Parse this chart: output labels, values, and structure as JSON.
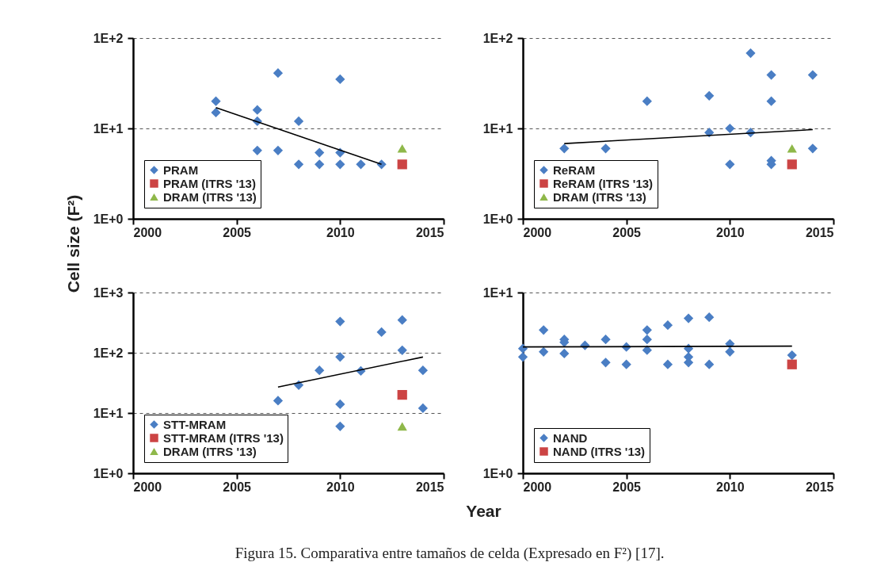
{
  "chart_data": [
    {
      "type": "scatter",
      "ylabel": "Cell size (F²)",
      "log": true,
      "grid": "y",
      "legend": "bottom left",
      "xlim": [
        2000,
        2015
      ],
      "xticks": [
        2000,
        2005,
        2010,
        2015
      ],
      "ylim": [
        1,
        100
      ],
      "yticks": [
        {
          "value": 1,
          "label": "1E+0"
        },
        {
          "value": 10,
          "label": "1E+1"
        },
        {
          "value": 100,
          "label": "1E+2"
        }
      ],
      "series": [
        {
          "name": "PRAM",
          "color": "#4a7ec4",
          "marker": "diamond",
          "x": [
            2004,
            2004,
            2006,
            2006,
            2006,
            2007,
            2007,
            2008,
            2008,
            2009,
            2009,
            2010,
            2010,
            2010,
            2011,
            2012
          ],
          "values": [
            20,
            15,
            16,
            12,
            5.7,
            41,
            5.7,
            12,
            4,
            5.4,
            4,
            35,
            5.4,
            4,
            4,
            4
          ]
        },
        {
          "name": "PRAM (ITRS '13)",
          "color": "#cc4444",
          "marker": "square",
          "x": [
            2013
          ],
          "values": [
            4
          ]
        },
        {
          "name": "DRAM (ITRS '13)",
          "color": "#8fb84a",
          "marker": "triangle",
          "x": [
            2013
          ],
          "values": [
            6
          ]
        },
        {
          "type": "line",
          "color": "#000000",
          "x": [
            2004,
            2012
          ],
          "values": [
            17,
            4
          ]
        }
      ]
    },
    {
      "type": "scatter",
      "log": true,
      "grid": "y",
      "legend": "bottom left",
      "xlim": [
        2000,
        2015
      ],
      "xticks": [
        2000,
        2005,
        2010,
        2015
      ],
      "ylim": [
        1,
        100
      ],
      "yticks": [
        {
          "value": 1,
          "label": "1E+0"
        },
        {
          "value": 10,
          "label": "1E+1"
        },
        {
          "value": 100,
          "label": "1E+2"
        }
      ],
      "series": [
        {
          "name": "ReRAM",
          "color": "#4a7ec4",
          "marker": "diamond",
          "x": [
            2002,
            2004,
            2006,
            2009,
            2009,
            2010,
            2010,
            2011,
            2011,
            2012,
            2012,
            2012,
            2012,
            2014,
            2014
          ],
          "values": [
            6,
            6,
            20,
            23,
            9,
            10,
            4,
            68,
            9,
            39,
            20,
            4.4,
            4,
            39,
            6
          ]
        },
        {
          "name": "ReRAM (ITRS '13)",
          "color": "#cc4444",
          "marker": "square",
          "x": [
            2013
          ],
          "values": [
            4
          ]
        },
        {
          "name": "DRAM (ITRS '13)",
          "color": "#8fb84a",
          "marker": "triangle",
          "x": [
            2013
          ],
          "values": [
            6
          ]
        },
        {
          "type": "line",
          "color": "#000000",
          "x": [
            2002,
            2014
          ],
          "values": [
            6.8,
            9.7
          ]
        }
      ]
    },
    {
      "type": "scatter",
      "xlabel": "Year",
      "log": true,
      "grid": "y",
      "legend": "bottom left",
      "xlim": [
        2000,
        2015
      ],
      "xticks": [
        2000,
        2005,
        2010,
        2015
      ],
      "ylim": [
        1,
        1000
      ],
      "yticks": [
        {
          "value": 1,
          "label": "1E+0"
        },
        {
          "value": 10,
          "label": "1E+1"
        },
        {
          "value": 100,
          "label": "1E+2"
        },
        {
          "value": 1000,
          "label": "1E+3"
        }
      ],
      "annotations": [
        "Figura 15. Comparativa entre tamaños de celda (Expresado en F²) [17]."
      ],
      "series": [
        {
          "name": "STT-MRAM",
          "color": "#4a7ec4",
          "marker": "diamond",
          "x": [
            2007,
            2008,
            2009,
            2010,
            2010,
            2010,
            2010,
            2011,
            2012,
            2013,
            2013,
            2014,
            2014
          ],
          "values": [
            16,
            29,
            51,
            330,
            85,
            14,
            6,
            50,
            220,
            350,
            110,
            51,
            12
          ]
        },
        {
          "name": "STT-MRAM (ITRS '13)",
          "color": "#cc4444",
          "marker": "square",
          "x": [
            2013
          ],
          "values": [
            20
          ]
        },
        {
          "name": "DRAM (ITRS '13)",
          "color": "#8fb84a",
          "marker": "triangle",
          "x": [
            2013
          ],
          "values": [
            6
          ]
        },
        {
          "type": "line",
          "color": "#000000",
          "x": [
            2007,
            2014
          ],
          "values": [
            27,
            85
          ]
        }
      ]
    },
    {
      "type": "scatter",
      "log": true,
      "grid": "y",
      "legend": "bottom left",
      "xlim": [
        2000,
        2015
      ],
      "xticks": [
        2000,
        2005,
        2010,
        2015
      ],
      "ylim": [
        1,
        10
      ],
      "yticks": [
        {
          "value": 1,
          "label": "1E+0"
        },
        {
          "value": 10,
          "label": "1E+1"
        }
      ],
      "series": [
        {
          "name": "NAND",
          "color": "#4a7ec4",
          "marker": "diamond",
          "x": [
            2000,
            2000,
            2001,
            2001,
            2002,
            2002,
            2002,
            2003,
            2004,
            2004,
            2005,
            2005,
            2006,
            2006,
            2006,
            2007,
            2007,
            2008,
            2008,
            2008,
            2008,
            2009,
            2009,
            2010,
            2010,
            2013
          ],
          "values": [
            4.9,
            4.4,
            6.2,
            4.7,
            5.5,
            5.3,
            4.6,
            5.1,
            5.5,
            4.1,
            5,
            4,
            6.2,
            5.5,
            4.8,
            6.6,
            4,
            7.2,
            4.9,
            4.4,
            4.1,
            7.3,
            4,
            5.2,
            4.7,
            4.5
          ]
        },
        {
          "name": "NAND (ITRS '13)",
          "color": "#cc4444",
          "marker": "square",
          "x": [
            2013
          ],
          "values": [
            4
          ]
        },
        {
          "type": "line",
          "color": "#000000",
          "x": [
            2000,
            2013
          ],
          "values": [
            5,
            5.05
          ]
        }
      ]
    }
  ]
}
